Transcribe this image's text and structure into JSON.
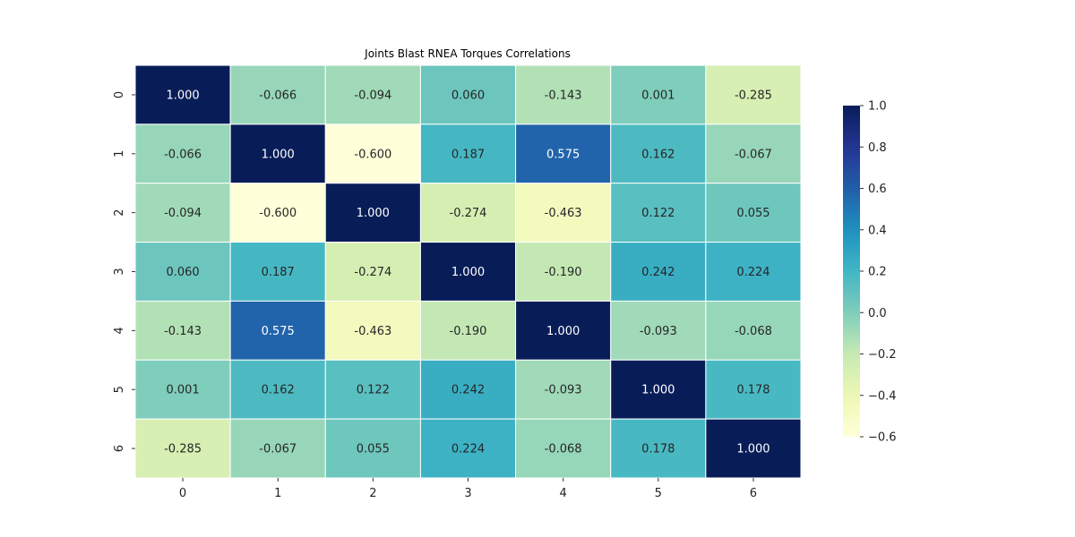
{
  "chart_data": {
    "type": "heatmap",
    "title": "Joints Blast RNEA Torques Correlations",
    "xlabel": "",
    "ylabel": "",
    "x_tick_labels": [
      "0",
      "1",
      "2",
      "3",
      "4",
      "5",
      "6"
    ],
    "y_tick_labels": [
      "0",
      "1",
      "2",
      "3",
      "4",
      "5",
      "6"
    ],
    "values": [
      [
        1.0,
        -0.066,
        -0.094,
        0.06,
        -0.143,
        0.001,
        -0.285
      ],
      [
        -0.066,
        1.0,
        -0.6,
        0.187,
        0.575,
        0.162,
        -0.067
      ],
      [
        -0.094,
        -0.6,
        1.0,
        -0.274,
        -0.463,
        0.122,
        0.055
      ],
      [
        0.06,
        0.187,
        -0.274,
        1.0,
        -0.19,
        0.242,
        0.224
      ],
      [
        -0.143,
        0.575,
        -0.463,
        -0.19,
        1.0,
        -0.093,
        -0.068
      ],
      [
        0.001,
        0.162,
        0.122,
        0.242,
        -0.093,
        1.0,
        0.178
      ],
      [
        -0.285,
        -0.067,
        0.055,
        0.224,
        -0.068,
        0.178,
        1.0
      ]
    ],
    "cell_labels": [
      [
        "1.000",
        "-0.066",
        "-0.094",
        "0.060",
        "-0.143",
        "0.001",
        "-0.285"
      ],
      [
        "-0.066",
        "1.000",
        "-0.600",
        "0.187",
        "0.575",
        "0.162",
        "-0.067"
      ],
      [
        "-0.094",
        "-0.600",
        "1.000",
        "-0.274",
        "-0.463",
        "0.122",
        "0.055"
      ],
      [
        "0.060",
        "0.187",
        "-0.274",
        "1.000",
        "-0.190",
        "0.242",
        "0.224"
      ],
      [
        "-0.143",
        "0.575",
        "-0.463",
        "-0.190",
        "1.000",
        "-0.093",
        "-0.068"
      ],
      [
        "0.001",
        "0.162",
        "0.122",
        "0.242",
        "-0.093",
        "1.000",
        "0.178"
      ],
      [
        "-0.285",
        "-0.067",
        "0.055",
        "0.224",
        "-0.068",
        "0.178",
        "1.000"
      ]
    ],
    "colormap": "YlGnBu",
    "color_range": [
      -0.6,
      1.0
    ],
    "colorbar": {
      "ticks": [
        -0.6,
        -0.4,
        -0.2,
        0.0,
        0.2,
        0.4,
        0.6,
        0.8,
        1.0
      ],
      "tick_labels": [
        "−0.6",
        "−0.4",
        "−0.2",
        "0.0",
        "0.2",
        "0.4",
        "0.6",
        "0.8",
        "1.0"
      ],
      "placement": "right"
    },
    "grid": false,
    "cell_border_color": "#ffffff",
    "dark_text_color": "#262626",
    "light_text_color": "#ffffff"
  }
}
